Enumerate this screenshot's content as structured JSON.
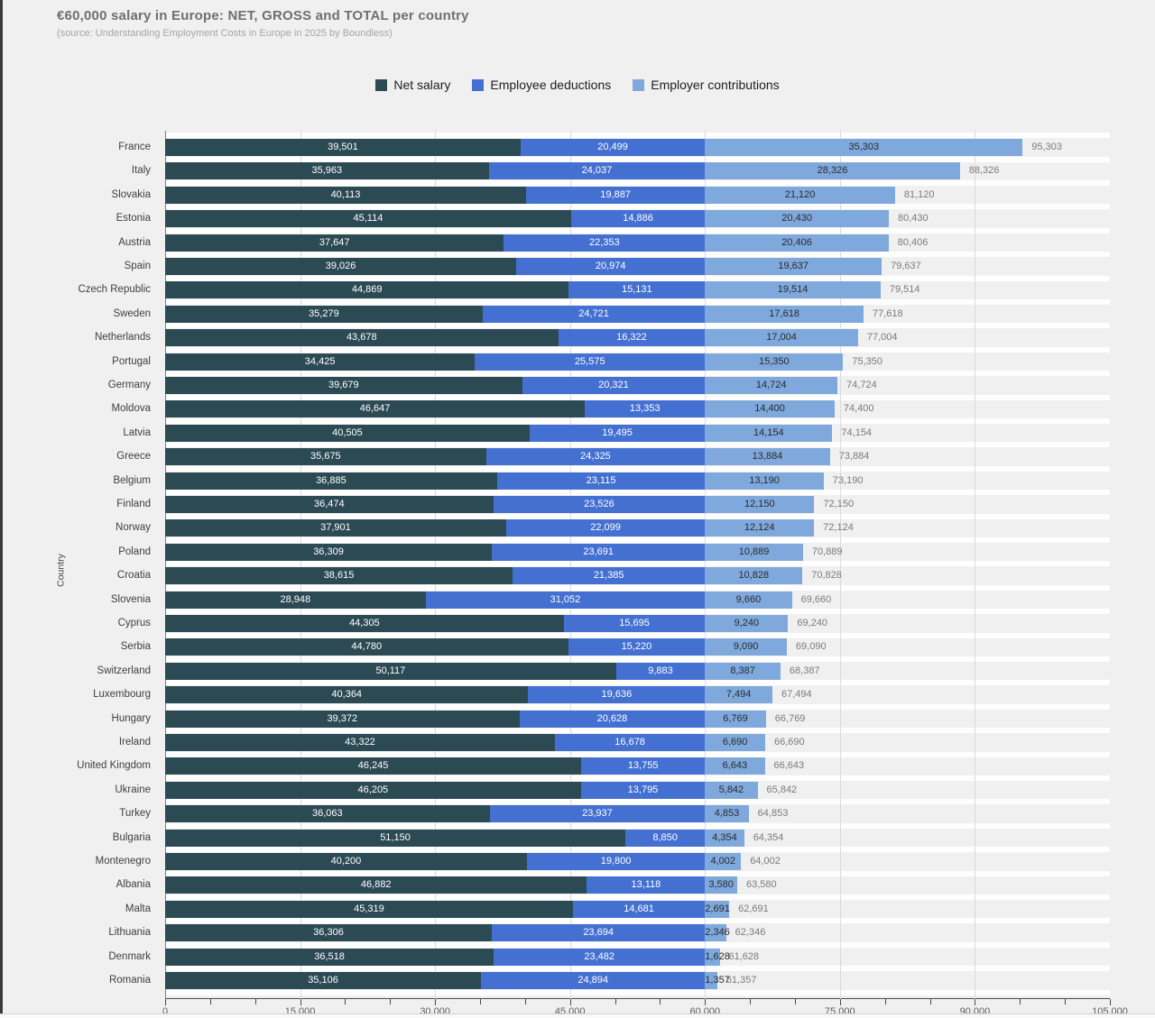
{
  "chart_data": {
    "type": "bar",
    "orientation": "horizontal",
    "stacked": true,
    "title": "€60,000 salary in Europe: NET, GROSS and TOTAL per country",
    "subtitle": "(source: Understanding Employment Costs in Europe in 2025 by Boundless)",
    "xlabel": "",
    "ylabel": "Country",
    "xlim": [
      0,
      105000
    ],
    "x_major_ticks": [
      0,
      15000,
      30000,
      45000,
      60000,
      75000,
      90000,
      105000
    ],
    "x_minor_tick_step": 5000,
    "grid": true,
    "legend_position": "top",
    "categories": [
      "France",
      "Italy",
      "Slovakia",
      "Estonia",
      "Austria",
      "Spain",
      "Czech Republic",
      "Sweden",
      "Netherlands",
      "Portugal",
      "Germany",
      "Moldova",
      "Latvia",
      "Greece",
      "Belgium",
      "Finland",
      "Norway",
      "Poland",
      "Croatia",
      "Slovenia",
      "Cyprus",
      "Serbia",
      "Switzerland",
      "Luxembourg",
      "Hungary",
      "Ireland",
      "United Kingdom",
      "Ukraine",
      "Turkey",
      "Bulgaria",
      "Montenegro",
      "Albania",
      "Malta",
      "Lithuania",
      "Denmark",
      "Romania"
    ],
    "series": [
      {
        "name": "Net salary",
        "color": "#2c4a54",
        "values": [
          39501,
          35963,
          40113,
          45114,
          37647,
          39026,
          44869,
          35279,
          43678,
          34425,
          39679,
          46647,
          40505,
          35675,
          36885,
          36474,
          37901,
          36309,
          38615,
          28948,
          44305,
          44780,
          50117,
          40364,
          39372,
          43322,
          46245,
          46205,
          36063,
          51150,
          40200,
          46882,
          45319,
          36306,
          36518,
          35106
        ]
      },
      {
        "name": "Employee deductions",
        "color": "#4470d2",
        "values": [
          20499,
          24037,
          19887,
          14886,
          22353,
          20974,
          15131,
          24721,
          16322,
          25575,
          20321,
          13353,
          19495,
          24325,
          23115,
          23526,
          22099,
          23691,
          21385,
          31052,
          15695,
          15220,
          9883,
          19636,
          20628,
          16678,
          13755,
          13795,
          23937,
          8850,
          19800,
          13118,
          14681,
          23694,
          23482,
          24894
        ]
      },
      {
        "name": "Employer contributions",
        "color": "#7fa8dc",
        "values": [
          35303,
          28326,
          21120,
          20430,
          20406,
          19637,
          19514,
          17618,
          17004,
          15350,
          14724,
          14400,
          14154,
          13884,
          13190,
          12150,
          12124,
          10889,
          10828,
          9660,
          9240,
          9090,
          8387,
          7494,
          6769,
          6690,
          6643,
          5842,
          4853,
          4354,
          4002,
          3580,
          2691,
          2346,
          1628,
          1357
        ]
      }
    ],
    "totals": [
      95303,
      88326,
      81120,
      80430,
      80406,
      79637,
      79514,
      77618,
      77004,
      75350,
      74724,
      74400,
      74154,
      73884,
      73190,
      72150,
      72124,
      70889,
      70828,
      69660,
      69240,
      69090,
      68387,
      67494,
      66769,
      66690,
      66643,
      65842,
      64853,
      64354,
      64002,
      63580,
      62691,
      62346,
      61628,
      61357
    ]
  },
  "style": {
    "background": "#f0f0f1",
    "gridline": "#dadadb",
    "zero_line": "#7e7e80",
    "axis_line": "#4b4b4d",
    "row_separator": "rgba(255,255,255,0.88)",
    "title_color": "#6f6f71",
    "subtitle_color": "#a6a6a8",
    "total_label_color": "#7b7b7d",
    "inside_label_light": "#ffffff",
    "inside_label_dark": "#2b2b2d"
  }
}
